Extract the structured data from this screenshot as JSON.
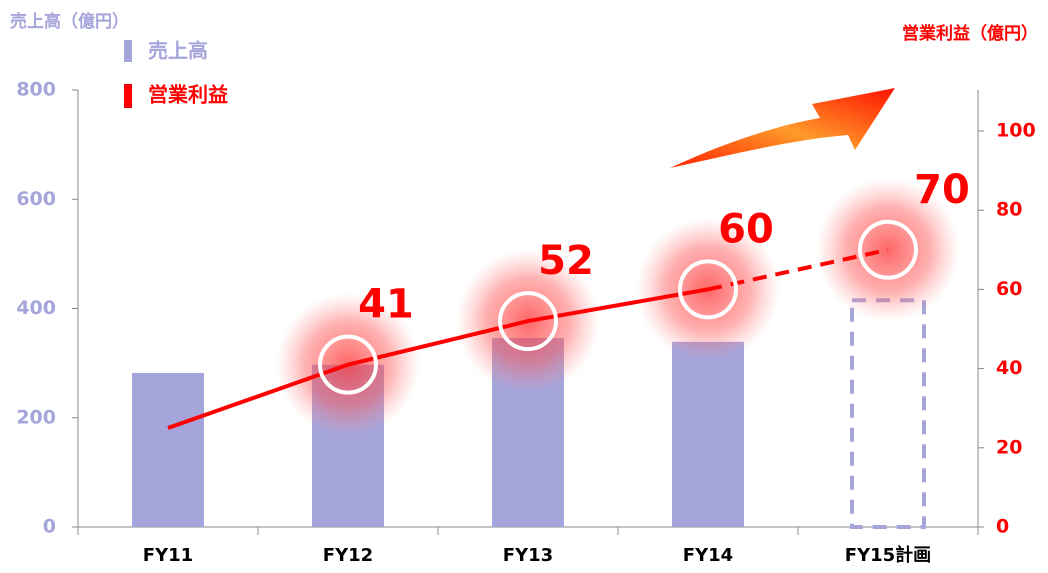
{
  "chart_data": {
    "type": "bar-line",
    "y_title": "売上高（億円）",
    "y2_title": "営業利益（億円）",
    "categories": [
      "FY11",
      "FY12",
      "FY13",
      "FY14",
      "FY15計画"
    ],
    "series": [
      {
        "name": "売上高",
        "type": "bar",
        "color": "#a5a5dc",
        "values": [
          282,
          297,
          346,
          339,
          415
        ]
      },
      {
        "name": "営業利益",
        "type": "line",
        "axis": "y2",
        "color": "#ff0000",
        "values": [
          25,
          41,
          52,
          60,
          70
        ]
      }
    ],
    "ylim": [
      0,
      800
    ],
    "yticks": [
      0,
      200,
      400,
      600,
      800
    ],
    "y2lim": [
      0,
      100
    ],
    "y2ticks": [
      0,
      20,
      40,
      60,
      80,
      100
    ]
  }
}
